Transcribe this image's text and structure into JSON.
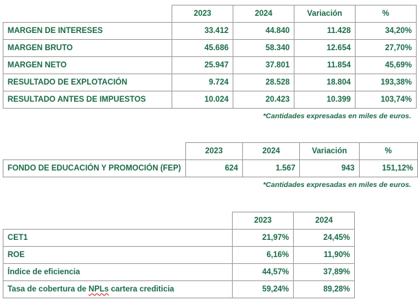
{
  "table1": {
    "headers": [
      "2023",
      "2024",
      "Variación",
      "%"
    ],
    "rows": [
      {
        "label": "MARGEN DE INTERESES",
        "values": [
          "33.412",
          "44.840",
          "11.428",
          "34,20%"
        ]
      },
      {
        "label": "MARGEN BRUTO",
        "values": [
          "45.686",
          "58.340",
          "12.654",
          "27,70%"
        ]
      },
      {
        "label": "MARGEN NETO",
        "values": [
          "25.947",
          "37.801",
          "11.854",
          "45,69%"
        ]
      },
      {
        "label": "RESULTADO DE EXPLOTACIÓN",
        "values": [
          "9.724",
          "28.528",
          "18.804",
          "193,38%"
        ]
      },
      {
        "label": "RESULTADO ANTES DE IMPUESTOS",
        "values": [
          "10.024",
          "20.423",
          "10.399",
          "103,74%"
        ]
      }
    ],
    "note": "*Cantidades expresadas en miles de euros."
  },
  "table2": {
    "headers": [
      "2023",
      "2024",
      "Variación",
      "%"
    ],
    "rows": [
      {
        "label": "FONDO DE EDUCACIÓN Y PROMOCIÓN (FEP)",
        "values": [
          "624",
          "1.567",
          "943",
          "151,12%"
        ]
      }
    ],
    "note": "*Cantidades expresadas en miles de euros."
  },
  "table3": {
    "headers": [
      "2023",
      "2024"
    ],
    "rows": [
      {
        "label": "CET1",
        "values": [
          "21,97%",
          "24,45%"
        ]
      },
      {
        "label": "ROE",
        "values": [
          "6,16%",
          "11,90%"
        ]
      },
      {
        "label": "Índice de eficiencia",
        "values": [
          "44,57%",
          "37,89%"
        ]
      },
      {
        "label_pre": "Tasa de cobertura de ",
        "label_mark": "NPLs",
        "label_post": " cartera crediticia",
        "values": [
          "59,24%",
          "89,28%"
        ]
      }
    ]
  }
}
